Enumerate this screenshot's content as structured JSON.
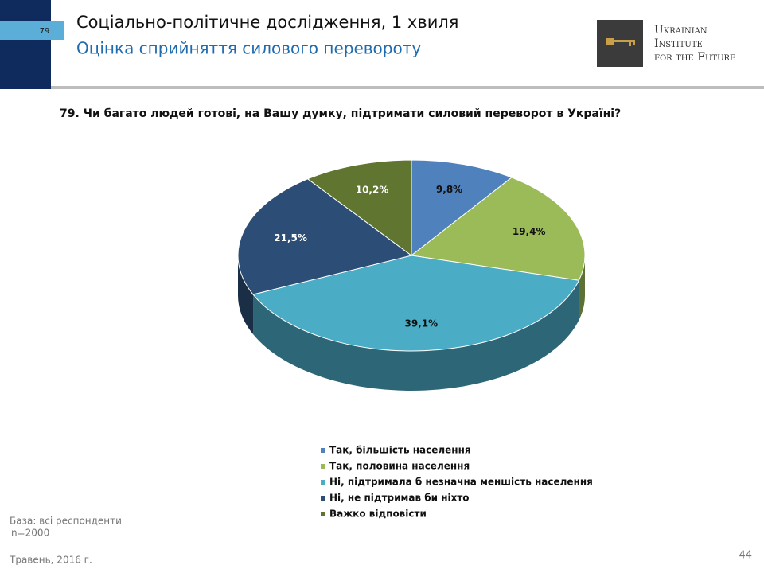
{
  "header": {
    "slide_number": "79",
    "title": "Соціально-політичне дослідження, 1 хвиля",
    "subtitle": "Оцінка сприйняття силового перевороту"
  },
  "logo": {
    "lines": [
      "Ukrainian",
      "Institute",
      "for the Future"
    ]
  },
  "question": "79. Чи багато людей готові, на Вашу думку, підтримати силовий переворот в Україні?",
  "chart_data": {
    "type": "pie",
    "categories": [
      "Так, більшість населення",
      "Так, половина населення",
      "Ні, підтримала б незначна меншість населення",
      "Ні, не підтримав би ніхто",
      "Важко відповісти"
    ],
    "values": [
      9.8,
      19.4,
      39.1,
      21.5,
      10.2
    ],
    "value_labels": [
      "9,8%",
      "19,4%",
      "39,1%",
      "21,5%",
      "10,2%"
    ],
    "colors": [
      "#4f81bd",
      "#9bbb59",
      "#4bacc6",
      "#2c4d75",
      "#5f7530"
    ],
    "legend": "bottom"
  },
  "footer": {
    "base": "База: всі респонденти",
    "n": "n=2000",
    "date": "Травень, 2016 г.",
    "page": "44"
  }
}
